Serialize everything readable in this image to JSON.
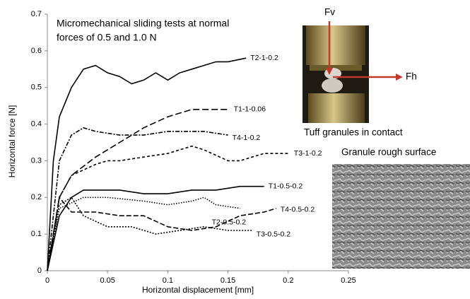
{
  "chart_data": {
    "type": "line",
    "annotation_lines": [
      "Micromechanical sliding tests at normal",
      "forces of 0.5 and 1.0 N"
    ],
    "x_label": "Horizontal displacement [mm]",
    "y_label": "Horizontal force [N]",
    "xlim": [
      0,
      0.25
    ],
    "xticks": [
      0,
      0.05,
      0.1,
      0.15,
      0.2,
      0.25
    ],
    "ylim": [
      0,
      0.7
    ],
    "yticks": [
      0,
      0.1,
      0.2,
      0.3,
      0.4,
      0.5,
      0.6,
      0.7
    ],
    "photo_caption": "Tuff granules in contact",
    "force_labels": [
      "Fv",
      "Fh"
    ],
    "sem_caption": "Granule rough surface",
    "series": [
      {
        "name": "T2-1-0.2",
        "color": "#000000",
        "dash": "none",
        "x": [
          0,
          0.005,
          0.01,
          0.02,
          0.03,
          0.04,
          0.05,
          0.06,
          0.07,
          0.08,
          0.09,
          0.1,
          0.11,
          0.12,
          0.13,
          0.14,
          0.15,
          0.165
        ],
        "values": [
          0,
          0.3,
          0.42,
          0.5,
          0.55,
          0.56,
          0.54,
          0.53,
          0.51,
          0.52,
          0.54,
          0.52,
          0.54,
          0.55,
          0.56,
          0.57,
          0.57,
          0.58
        ]
      },
      {
        "name": "T1-1-0.06",
        "color": "#000000",
        "dash": "9 4",
        "x": [
          0,
          0.01,
          0.02,
          0.04,
          0.06,
          0.08,
          0.1,
          0.12,
          0.14,
          0.15
        ],
        "values": [
          0,
          0.2,
          0.26,
          0.31,
          0.35,
          0.39,
          0.42,
          0.44,
          0.44,
          0.44
        ]
      },
      {
        "name": "T4-1-0.2",
        "color": "#000000",
        "dash": "6 2 2 2",
        "x": [
          0,
          0.01,
          0.02,
          0.03,
          0.04,
          0.06,
          0.08,
          0.1,
          0.12,
          0.13,
          0.15
        ],
        "values": [
          0,
          0.3,
          0.37,
          0.39,
          0.38,
          0.37,
          0.37,
          0.38,
          0.38,
          0.38,
          0.37
        ]
      },
      {
        "name": "T3-1-0.2",
        "color": "#000000",
        "dash": "4 3",
        "x": [
          0,
          0.01,
          0.02,
          0.04,
          0.05,
          0.06,
          0.08,
          0.1,
          0.12,
          0.13,
          0.15,
          0.16,
          0.18,
          0.2
        ],
        "values": [
          0,
          0.2,
          0.26,
          0.29,
          0.3,
          0.3,
          0.31,
          0.32,
          0.34,
          0.33,
          0.3,
          0.3,
          0.32,
          0.32
        ]
      },
      {
        "name": "T1-0.5-0.2",
        "color": "#000000",
        "dash": "none",
        "x": [
          0,
          0.01,
          0.02,
          0.03,
          0.04,
          0.06,
          0.08,
          0.1,
          0.12,
          0.14,
          0.16,
          0.18
        ],
        "values": [
          0,
          0.15,
          0.2,
          0.22,
          0.22,
          0.22,
          0.21,
          0.21,
          0.22,
          0.22,
          0.23,
          0.23
        ]
      },
      {
        "name": "T2-0.5-0.2",
        "color": "#000000",
        "dash": "1.5 2",
        "x": [
          0,
          0.01,
          0.03,
          0.05,
          0.08,
          0.1,
          0.12,
          0.13,
          0.14,
          0.16
        ],
        "values": [
          0,
          0.17,
          0.2,
          0.2,
          0.19,
          0.18,
          0.19,
          0.2,
          0.18,
          0.17
        ]
      },
      {
        "name": "T4-0.5-0.2",
        "color": "#000000",
        "dash": "7 3",
        "x": [
          0,
          0.01,
          0.02,
          0.04,
          0.06,
          0.08,
          0.1,
          0.12,
          0.14,
          0.16,
          0.18,
          0.19
        ],
        "values": [
          0,
          0.2,
          0.16,
          0.16,
          0.15,
          0.15,
          0.12,
          0.11,
          0.12,
          0.15,
          0.16,
          0.17
        ]
      },
      {
        "name": "T3-0.5-0.2",
        "color": "#000000",
        "dash": "2 2",
        "x": [
          0,
          0.01,
          0.02,
          0.03,
          0.05,
          0.07,
          0.09,
          0.11,
          0.13,
          0.15,
          0.17
        ],
        "values": [
          0,
          0.18,
          0.2,
          0.15,
          0.12,
          0.12,
          0.1,
          0.11,
          0.12,
          0.11,
          0.11
        ]
      }
    ]
  }
}
